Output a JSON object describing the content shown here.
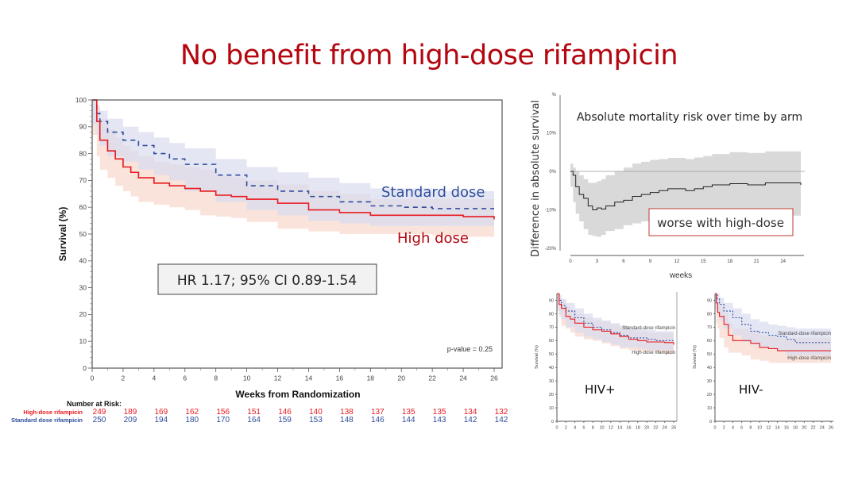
{
  "slide": {
    "title": "No benefit from high-dose rifampicin",
    "colors": {
      "title": "#b3060f",
      "high_dose": "#e8191f",
      "standard_dose": "#2e4d9a",
      "high_ci": "#f7d9cf",
      "standard_ci": "#d9dcf0",
      "diff_ci": "#d9d9d9"
    }
  },
  "chart_data": [
    {
      "id": "main-km",
      "type": "line",
      "title": "",
      "xlabel": "Weeks from Randomization",
      "ylabel": "Survival (%)",
      "xlim": [
        0,
        26
      ],
      "ylim": [
        0,
        100
      ],
      "xticks": [
        0,
        2,
        4,
        6,
        8,
        10,
        12,
        14,
        16,
        18,
        20,
        22,
        24,
        26
      ],
      "yticks": [
        0,
        10,
        20,
        30,
        40,
        50,
        60,
        70,
        80,
        90,
        100
      ],
      "grid": false,
      "series": [
        {
          "name": "High dose",
          "style": "solid",
          "x": [
            0,
            0.3,
            0.5,
            1,
            1.5,
            2,
            2.5,
            3,
            4,
            5,
            6,
            7,
            8,
            9,
            10,
            12,
            14,
            16,
            18,
            20,
            22,
            24,
            26
          ],
          "y": [
            100,
            92,
            85,
            81,
            78,
            75,
            73,
            71,
            69,
            68,
            67,
            66,
            64.5,
            64,
            63,
            61.5,
            59,
            58,
            57,
            57,
            57,
            56.5,
            55.5
          ],
          "ci_upper": [
            100,
            97,
            93,
            89,
            86,
            83,
            81,
            79,
            77,
            76,
            75,
            74,
            72,
            71,
            70,
            68.5,
            66,
            65,
            63,
            63,
            63,
            63,
            63
          ],
          "ci_lower": [
            100,
            87,
            79,
            74,
            71,
            68,
            66,
            64,
            62,
            61,
            60,
            59,
            57,
            56.5,
            56,
            54.5,
            52,
            51,
            50,
            50,
            50,
            49.5,
            49
          ]
        },
        {
          "name": "Standard dose",
          "style": "dashed",
          "x": [
            0,
            0.3,
            0.5,
            1,
            2,
            3,
            4,
            5,
            6,
            8,
            10,
            12,
            14,
            16,
            18,
            20,
            22,
            24,
            26
          ],
          "y": [
            100,
            95,
            92,
            88,
            85,
            83,
            80,
            78,
            76,
            72,
            68,
            66,
            64,
            62,
            60.5,
            60,
            59.5,
            59.5,
            59.5
          ],
          "ci_upper": [
            100,
            98,
            96,
            93,
            90,
            88,
            86,
            84,
            82,
            78,
            75,
            73,
            71,
            69,
            67,
            67,
            66,
            66,
            66
          ],
          "ci_lower": [
            100,
            91,
            87,
            83,
            79,
            77,
            74,
            72,
            70,
            66,
            62,
            59,
            57,
            55,
            54,
            53,
            53,
            53,
            53
          ]
        }
      ],
      "annotations": [
        {
          "text": "Standard dose",
          "color": "#2e4d9a"
        },
        {
          "text": "High dose",
          "color": "#b3060f"
        },
        {
          "text": "HR 1.17; 95% CI 0.89-1.54",
          "boxed": true
        },
        {
          "text": "p-value = 0.25"
        }
      ],
      "number_at_risk": {
        "heading": "Number at Risk:",
        "rows": [
          {
            "label": "High-dose rifampicin",
            "color": "#e8191f",
            "values": [
              249,
              189,
              169,
              162,
              156,
              151,
              146,
              140,
              138,
              137,
              135,
              135,
              134,
              132
            ]
          },
          {
            "label": "Standard dose rifampicin",
            "color": "#2e4d9a",
            "values": [
              250,
              209,
              194,
              180,
              170,
              164,
              159,
              153,
              148,
              146,
              144,
              143,
              142,
              142
            ]
          }
        ]
      }
    },
    {
      "id": "difference",
      "type": "line",
      "title": "Absolute mortality risk over time by arm",
      "xlabel": "weeks",
      "ylabel": "Difference in absolute survival",
      "xlim": [
        0,
        26
      ],
      "ylim": [
        -20,
        20
      ],
      "xticks": [
        0,
        3,
        6,
        9,
        12,
        15,
        18,
        21,
        24
      ],
      "yticks": [
        {
          "v": 20,
          "label": "%"
        },
        {
          "v": 10,
          "label": "10%"
        },
        {
          "v": 0,
          "label": "0%"
        },
        {
          "v": -10,
          "label": "-10%"
        },
        {
          "v": -20,
          "label": "-20%"
        }
      ],
      "reference_line": 0,
      "series": [
        {
          "name": "Difference",
          "x": [
            0,
            0.3,
            0.6,
            1,
            1.5,
            2,
            2.5,
            3,
            3.5,
            4,
            5,
            6,
            7,
            8,
            9,
            10,
            11,
            12,
            13,
            14,
            15,
            16,
            18,
            20,
            22,
            24,
            26
          ],
          "y": [
            0,
            -1,
            -4,
            -6,
            -7,
            -9,
            -10,
            -9.5,
            -9.8,
            -9,
            -8,
            -7.5,
            -6.5,
            -6,
            -5.5,
            -5,
            -4.5,
            -4.5,
            -5,
            -4.5,
            -4,
            -3.5,
            -3.2,
            -3.5,
            -3,
            -3,
            -3.5
          ],
          "ci_upper": [
            2,
            1,
            0,
            -1,
            -2,
            -3,
            -3,
            -2.5,
            -2,
            -1,
            0,
            1,
            2,
            2.5,
            3,
            3.2,
            3.5,
            3.5,
            3.2,
            3.6,
            4,
            4.5,
            5,
            4.8,
            5.2,
            5.2,
            5
          ],
          "ci_lower": [
            -2,
            -4,
            -8,
            -11,
            -13,
            -15,
            -16.5,
            -16.8,
            -17,
            -16.5,
            -15.5,
            -15,
            -14,
            -13.5,
            -13,
            -12.8,
            -12.5,
            -12.5,
            -13,
            -12.5,
            -12,
            -11.5,
            -11,
            -11.5,
            -11,
            -11,
            -11.5
          ]
        }
      ],
      "annotations": [
        {
          "text": "worse with high-dose",
          "boxed": true,
          "border": "#c0392b"
        }
      ]
    },
    {
      "id": "hiv-positive",
      "type": "line",
      "title": "HIV+",
      "xlabel": "",
      "ylabel": "Survival (%)",
      "xlim": [
        0,
        26
      ],
      "ylim": [
        0,
        95
      ],
      "xticks": [
        0,
        2,
        4,
        6,
        8,
        10,
        12,
        14,
        16,
        18,
        20,
        22,
        24,
        26
      ],
      "yticks": [
        0,
        10,
        20,
        30,
        40,
        50,
        60,
        70,
        80,
        90
      ],
      "series": [
        {
          "name": "High-dose rifampicin",
          "x": [
            0,
            0.5,
            1,
            2,
            3,
            4,
            6,
            8,
            10,
            12,
            14,
            16,
            18,
            20,
            22,
            24,
            26
          ],
          "y": [
            95,
            87,
            84,
            78,
            76,
            73,
            70,
            68,
            67,
            65,
            63,
            61,
            60,
            59,
            59,
            58.5,
            57
          ],
          "ci_upper": [
            95,
            92,
            90,
            85,
            83,
            80,
            77,
            75,
            74,
            72,
            70,
            68,
            67,
            66,
            66,
            66,
            65
          ],
          "ci_lower": [
            95,
            82,
            78,
            71,
            69,
            66,
            63,
            61,
            60,
            58,
            56,
            54,
            53,
            52,
            52,
            51,
            50
          ]
        },
        {
          "name": "Standard-dose rifampicin",
          "x": [
            0,
            0.5,
            1,
            2,
            4,
            6,
            8,
            10,
            12,
            14,
            16,
            18,
            20,
            22,
            24,
            26
          ],
          "y": [
            95,
            90,
            86,
            82,
            77,
            73,
            70,
            68,
            66,
            64,
            62,
            62,
            61,
            60,
            60,
            60
          ],
          "ci_upper": [
            95,
            94,
            91,
            88,
            84,
            80,
            77,
            75,
            73,
            71,
            69,
            69,
            68,
            67,
            67,
            67
          ],
          "ci_lower": [
            95,
            85,
            80,
            76,
            70,
            66,
            63,
            61,
            59,
            57,
            55,
            55,
            54,
            53,
            53,
            53
          ]
        }
      ],
      "annotations": [
        {
          "text": "Standard-dose rifampicin"
        },
        {
          "text": "High-dose rifampicin"
        },
        {
          "text": "HIV+"
        }
      ]
    },
    {
      "id": "hiv-negative",
      "type": "line",
      "title": "HIV-",
      "xlabel": "",
      "ylabel": "Survival (%)",
      "xlim": [
        0,
        26
      ],
      "ylim": [
        0,
        95
      ],
      "xticks": [
        0,
        2,
        4,
        6,
        8,
        10,
        12,
        14,
        16,
        18,
        20,
        22,
        24,
        26
      ],
      "yticks": [
        0,
        10,
        20,
        30,
        40,
        50,
        60,
        70,
        80,
        90
      ],
      "series": [
        {
          "name": "High-dose rifampicin",
          "x": [
            0,
            0.3,
            0.6,
            1,
            2,
            3,
            4,
            6,
            8,
            10,
            12,
            14,
            16,
            18,
            20,
            22,
            24,
            26
          ],
          "y": [
            95,
            88,
            81,
            78,
            72,
            64,
            60,
            60,
            58,
            55,
            54,
            52.5,
            52.5,
            52.5,
            52.5,
            52.5,
            52.5,
            52.5
          ],
          "ci_upper": [
            95,
            93,
            89,
            86,
            80,
            73,
            69,
            69,
            67,
            64,
            63,
            62,
            62,
            62,
            62,
            62,
            62,
            62
          ],
          "ci_lower": [
            95,
            83,
            73,
            69,
            62,
            55,
            51,
            51,
            49,
            46,
            45,
            43.5,
            43.5,
            43.5,
            43.5,
            43.5,
            43.5,
            43.5
          ]
        },
        {
          "name": "Standard-dose rifampicin",
          "x": [
            0,
            0.5,
            1,
            2,
            4,
            6,
            8,
            10,
            12,
            14,
            16,
            18,
            20,
            22,
            24,
            26
          ],
          "y": [
            95,
            91,
            87,
            82,
            77,
            72,
            67,
            66,
            64,
            63,
            61,
            58.5,
            58.5,
            58.5,
            58.5,
            58.5
          ],
          "ci_upper": [
            95,
            95,
            92,
            88,
            84,
            80,
            76,
            74,
            72,
            71,
            70,
            69,
            69,
            69,
            69,
            69
          ],
          "ci_lower": [
            95,
            87,
            81,
            75,
            69,
            64,
            59,
            57,
            55,
            54,
            52,
            49,
            49,
            49,
            49,
            49
          ]
        }
      ],
      "annotations": [
        {
          "text": "Standard-dose rifampicin"
        },
        {
          "text": "High-dose rifampicin"
        },
        {
          "text": "HIV-"
        }
      ]
    }
  ]
}
